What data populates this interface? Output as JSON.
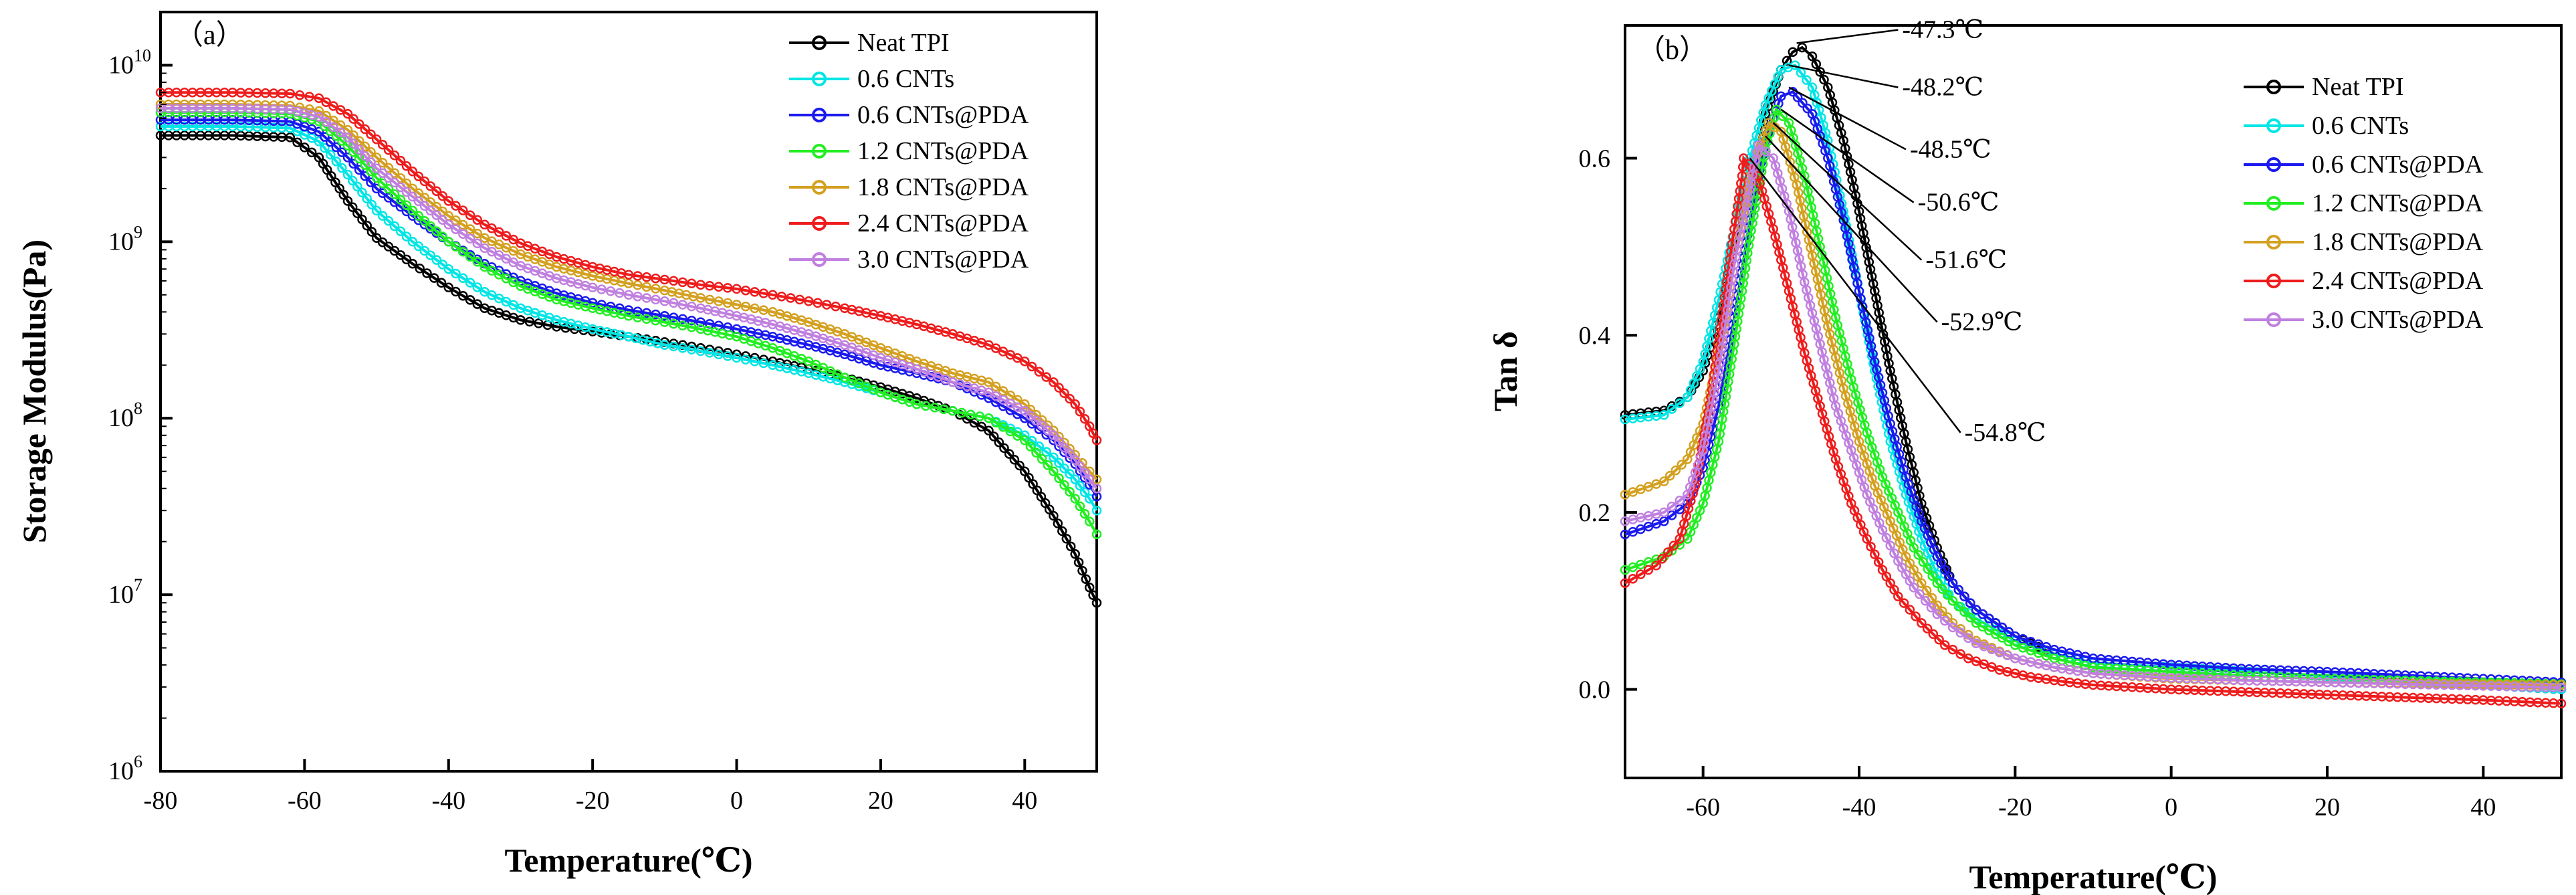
{
  "chart_data": [
    {
      "type": "line",
      "panel_label": "（a）",
      "xlabel": "Temperature(℃)",
      "ylabel": "Storage Modulus(Pa)",
      "xlim": [
        -80,
        50
      ],
      "ylim": [
        1000000,
        20000000000
      ],
      "yscale": "log",
      "x_ticks": [
        -80,
        -60,
        -40,
        -20,
        0,
        20,
        40
      ],
      "y_ticks": [
        {
          "exp": 6,
          "label_base": "10",
          "label_exp": "6"
        },
        {
          "exp": 7,
          "label_base": "10",
          "label_exp": "7"
        },
        {
          "exp": 8,
          "label_base": "10",
          "label_exp": "8"
        },
        {
          "exp": 9,
          "label_base": "10",
          "label_exp": "9"
        },
        {
          "exp": 10,
          "label_base": "10",
          "label_exp": "10"
        }
      ],
      "grid": false,
      "legend_position": "top-right",
      "series": [
        {
          "name": "Neat TPI",
          "color": "#000000",
          "x": [
            -80,
            -70,
            -62,
            -58,
            -54,
            -50,
            -45,
            -40,
            -35,
            -30,
            -25,
            -20,
            -15,
            -10,
            -5,
            0,
            5,
            10,
            15,
            20,
            25,
            30,
            35,
            40,
            44,
            47,
            49,
            50
          ],
          "y": [
            4000000000,
            4000000000,
            3900000000,
            3000000000,
            1700000000,
            1050000000,
            750000000,
            550000000,
            420000000,
            360000000,
            330000000,
            310000000,
            290000000,
            270000000,
            250000000,
            230000000,
            210000000,
            190000000,
            170000000,
            150000000,
            130000000,
            110000000,
            85000000,
            50000000,
            28000000,
            17000000,
            11000000,
            9000000
          ]
        },
        {
          "name": "0.6 CNTs",
          "color": "#00e5e5",
          "x": [
            -80,
            -70,
            -62,
            -58,
            -54,
            -50,
            -45,
            -40,
            -35,
            -30,
            -25,
            -20,
            -15,
            -10,
            -5,
            0,
            5,
            10,
            15,
            20,
            25,
            30,
            35,
            40,
            44,
            47,
            49,
            50
          ],
          "y": [
            4500000000,
            4500000000,
            4400000000,
            3700000000,
            2400000000,
            1500000000,
            1000000000,
            700000000,
            520000000,
            420000000,
            360000000,
            320000000,
            290000000,
            260000000,
            240000000,
            220000000,
            200000000,
            180000000,
            160000000,
            140000000,
            120000000,
            110000000,
            100000000,
            80000000,
            60000000,
            45000000,
            35000000,
            30000000
          ]
        },
        {
          "name": "0.6 CNTs@PDA",
          "color": "#1a1aee",
          "x": [
            -80,
            -70,
            -62,
            -58,
            -54,
            -50,
            -45,
            -40,
            -35,
            -30,
            -25,
            -20,
            -15,
            -10,
            -5,
            0,
            5,
            10,
            15,
            20,
            25,
            30,
            35,
            40,
            44,
            47,
            49,
            50
          ],
          "y": [
            4900000000,
            4900000000,
            4800000000,
            4200000000,
            3000000000,
            2000000000,
            1400000000,
            1000000000,
            750000000,
            600000000,
            510000000,
            450000000,
            410000000,
            380000000,
            350000000,
            320000000,
            290000000,
            260000000,
            230000000,
            200000000,
            180000000,
            160000000,
            130000000,
            100000000,
            75000000,
            55000000,
            42000000,
            36000000
          ]
        },
        {
          "name": "1.2 CNTs@PDA",
          "color": "#22ee22",
          "x": [
            -80,
            -70,
            -62,
            -58,
            -54,
            -50,
            -45,
            -40,
            -35,
            -30,
            -25,
            -20,
            -15,
            -10,
            -5,
            0,
            5,
            10,
            15,
            20,
            25,
            30,
            35,
            40,
            44,
            47,
            49,
            50
          ],
          "y": [
            5400000000,
            5400000000,
            5300000000,
            4800000000,
            3500000000,
            2300000000,
            1500000000,
            1000000000,
            720000000,
            560000000,
            470000000,
            420000000,
            380000000,
            350000000,
            320000000,
            290000000,
            250000000,
            210000000,
            170000000,
            140000000,
            120000000,
            110000000,
            100000000,
            75000000,
            50000000,
            35000000,
            26000000,
            22000000
          ]
        },
        {
          "name": "1.8 CNTs@PDA",
          "color": "#d4a020",
          "x": [
            -80,
            -70,
            -62,
            -58,
            -54,
            -50,
            -45,
            -40,
            -35,
            -30,
            -25,
            -20,
            -15,
            -10,
            -5,
            0,
            5,
            10,
            15,
            20,
            25,
            30,
            35,
            40,
            44,
            47,
            49,
            50
          ],
          "y": [
            6000000000,
            6000000000,
            5900000000,
            5500000000,
            4300000000,
            3000000000,
            2000000000,
            1400000000,
            1050000000,
            850000000,
            720000000,
            640000000,
            580000000,
            530000000,
            480000000,
            440000000,
            400000000,
            350000000,
            300000000,
            250000000,
            210000000,
            180000000,
            160000000,
            120000000,
            85000000,
            62000000,
            50000000,
            45000000
          ]
        },
        {
          "name": "2.4 CNTs@PDA",
          "color": "#ee1c1c",
          "x": [
            -80,
            -70,
            -62,
            -58,
            -54,
            -50,
            -45,
            -40,
            -35,
            -30,
            -25,
            -20,
            -15,
            -10,
            -5,
            0,
            5,
            10,
            15,
            20,
            25,
            30,
            35,
            40,
            44,
            47,
            49,
            50
          ],
          "y": [
            7000000000,
            7000000000,
            6900000000,
            6500000000,
            5300000000,
            3800000000,
            2500000000,
            1700000000,
            1250000000,
            980000000,
            820000000,
            720000000,
            650000000,
            610000000,
            570000000,
            540000000,
            500000000,
            460000000,
            420000000,
            380000000,
            340000000,
            300000000,
            260000000,
            210000000,
            160000000,
            120000000,
            90000000,
            75000000
          ]
        },
        {
          "name": "3.0 CNTs@PDA",
          "color": "#c080e0",
          "x": [
            -80,
            -70,
            -62,
            -58,
            -54,
            -50,
            -45,
            -40,
            -35,
            -30,
            -25,
            -20,
            -15,
            -10,
            -5,
            0,
            5,
            10,
            15,
            20,
            25,
            30,
            35,
            40,
            44,
            47,
            49,
            50
          ],
          "y": [
            5700000000,
            5700000000,
            5600000000,
            5100000000,
            3900000000,
            2600000000,
            1800000000,
            1250000000,
            920000000,
            730000000,
            620000000,
            550000000,
            500000000,
            460000000,
            420000000,
            380000000,
            340000000,
            300000000,
            260000000,
            220000000,
            190000000,
            160000000,
            140000000,
            110000000,
            80000000,
            58000000,
            45000000,
            40000000
          ]
        }
      ]
    },
    {
      "type": "line",
      "panel_label": "（b）",
      "xlabel": "Temperature(℃)",
      "ylabel": "Tan δ",
      "xlim": [
        -70,
        50
      ],
      "ylim": [
        -0.1,
        0.75
      ],
      "x_ticks": [
        -60,
        -40,
        -20,
        0,
        20,
        40
      ],
      "y_ticks": [
        0.0,
        0.2,
        0.4,
        0.6
      ],
      "y_tick_labels": [
        "0.0",
        "0.2",
        "0.4",
        "0.6"
      ],
      "grid": false,
      "legend_position": "top-right",
      "annotations": [
        {
          "text": "-47.3℃",
          "x": -48,
          "y": 0.73,
          "tx": -35,
          "ty": 0.745
        },
        {
          "text": "-48.2℃",
          "x": -49,
          "y": 0.705,
          "tx": -35,
          "ty": 0.68
        },
        {
          "text": "-48.5℃",
          "x": -49,
          "y": 0.68,
          "tx": -34,
          "ty": 0.61
        },
        {
          "text": "-50.6℃",
          "x": -50,
          "y": 0.655,
          "tx": -33,
          "ty": 0.55
        },
        {
          "text": "-51.6℃",
          "x": -51,
          "y": 0.64,
          "tx": -32,
          "ty": 0.485
        },
        {
          "text": "-52.9℃",
          "x": -52,
          "y": 0.625,
          "tx": -30,
          "ty": 0.415
        },
        {
          "text": "-54.8℃",
          "x": -54,
          "y": 0.6,
          "tx": -27,
          "ty": 0.29
        }
      ],
      "series": [
        {
          "name": "Neat TPI",
          "color": "#000000",
          "x": [
            -70,
            -65,
            -62,
            -60,
            -58,
            -56,
            -54,
            -52,
            -50,
            -48.5,
            -47.3,
            -46,
            -44,
            -42,
            -40,
            -38,
            -36,
            -34,
            -32,
            -30,
            -28,
            -25,
            -20,
            -15,
            -10,
            0,
            10,
            20,
            30,
            40,
            50
          ],
          "y": [
            0.31,
            0.315,
            0.33,
            0.36,
            0.42,
            0.5,
            0.58,
            0.65,
            0.7,
            0.72,
            0.725,
            0.715,
            0.68,
            0.62,
            0.54,
            0.45,
            0.36,
            0.28,
            0.21,
            0.16,
            0.12,
            0.09,
            0.06,
            0.04,
            0.03,
            0.025,
            0.02,
            0.015,
            0.01,
            0.005,
            0.0
          ]
        },
        {
          "name": "0.6 CNTs",
          "color": "#00e5e5",
          "x": [
            -70,
            -65,
            -62,
            -60,
            -58,
            -56,
            -54,
            -52,
            -50,
            -48.2,
            -46,
            -44,
            -42,
            -40,
            -38,
            -36,
            -34,
            -32,
            -30,
            -28,
            -25,
            -20,
            -15,
            -10,
            0,
            10,
            20,
            30,
            40,
            50
          ],
          "y": [
            0.305,
            0.31,
            0.33,
            0.37,
            0.44,
            0.52,
            0.6,
            0.66,
            0.7,
            0.705,
            0.68,
            0.62,
            0.54,
            0.45,
            0.36,
            0.28,
            0.22,
            0.17,
            0.13,
            0.1,
            0.08,
            0.055,
            0.04,
            0.03,
            0.025,
            0.02,
            0.015,
            0.01,
            0.005,
            0.0
          ]
        },
        {
          "name": "0.6 CNTs@PDA",
          "color": "#1a1aee",
          "x": [
            -70,
            -65,
            -62,
            -60,
            -58,
            -56,
            -54,
            -52,
            -50,
            -48.5,
            -46,
            -44,
            -42,
            -40,
            -38,
            -36,
            -34,
            -32,
            -30,
            -28,
            -25,
            -20,
            -15,
            -10,
            0,
            10,
            20,
            30,
            40,
            50
          ],
          "y": [
            0.175,
            0.19,
            0.21,
            0.25,
            0.32,
            0.42,
            0.53,
            0.62,
            0.67,
            0.675,
            0.65,
            0.6,
            0.53,
            0.45,
            0.37,
            0.3,
            0.24,
            0.19,
            0.15,
            0.12,
            0.09,
            0.06,
            0.045,
            0.035,
            0.028,
            0.023,
            0.02,
            0.016,
            0.012,
            0.008
          ]
        },
        {
          "name": "1.2 CNTs@PDA",
          "color": "#22ee22",
          "x": [
            -70,
            -65,
            -62,
            -60,
            -58,
            -56,
            -54,
            -52,
            -50.6,
            -49,
            -47,
            -45,
            -43,
            -41,
            -39,
            -37,
            -35,
            -33,
            -30,
            -28,
            -25,
            -20,
            -15,
            -10,
            0,
            10,
            20,
            30,
            40,
            50
          ],
          "y": [
            0.135,
            0.15,
            0.17,
            0.21,
            0.28,
            0.39,
            0.51,
            0.61,
            0.655,
            0.64,
            0.58,
            0.5,
            0.42,
            0.35,
            0.29,
            0.24,
            0.2,
            0.16,
            0.12,
            0.1,
            0.075,
            0.05,
            0.035,
            0.025,
            0.02,
            0.015,
            0.012,
            0.01,
            0.008,
            0.006
          ]
        },
        {
          "name": "1.8 CNTs@PDA",
          "color": "#d4a020",
          "x": [
            -70,
            -65,
            -62,
            -60,
            -58,
            -56,
            -54,
            -51.6,
            -50,
            -48,
            -46,
            -44,
            -42,
            -40,
            -38,
            -36,
            -34,
            -32,
            -30,
            -28,
            -25,
            -20,
            -15,
            -10,
            0,
            10,
            20,
            30,
            40,
            50
          ],
          "y": [
            0.22,
            0.235,
            0.26,
            0.3,
            0.38,
            0.48,
            0.58,
            0.64,
            0.63,
            0.57,
            0.49,
            0.41,
            0.34,
            0.28,
            0.23,
            0.19,
            0.15,
            0.12,
            0.095,
            0.075,
            0.055,
            0.035,
            0.025,
            0.018,
            0.012,
            0.01,
            0.008,
            0.007,
            0.006,
            0.005
          ]
        },
        {
          "name": "2.4 CNTs@PDA",
          "color": "#ee1c1c",
          "x": [
            -70,
            -66,
            -63,
            -61,
            -59,
            -57,
            -55,
            -54.8,
            -53,
            -51,
            -49,
            -47,
            -45,
            -43,
            -41,
            -39,
            -37,
            -35,
            -32,
            -29,
            -26,
            -22,
            -18,
            -14,
            -10,
            0,
            10,
            20,
            30,
            40,
            50
          ],
          "y": [
            0.12,
            0.14,
            0.17,
            0.23,
            0.33,
            0.46,
            0.58,
            0.6,
            0.58,
            0.52,
            0.45,
            0.38,
            0.32,
            0.26,
            0.21,
            0.17,
            0.135,
            0.105,
            0.075,
            0.05,
            0.035,
            0.022,
            0.014,
            0.009,
            0.005,
            0.0,
            -0.003,
            -0.006,
            -0.009,
            -0.012,
            -0.016
          ]
        },
        {
          "name": "3.0 CNTs@PDA",
          "color": "#c080e0",
          "x": [
            -70,
            -65,
            -62,
            -60,
            -58,
            -56,
            -52.9,
            -51,
            -49,
            -47,
            -45,
            -43,
            -41,
            -39,
            -37,
            -35,
            -33,
            -30,
            -28,
            -25,
            -20,
            -15,
            -10,
            0,
            10,
            20,
            30,
            40,
            50
          ],
          "y": [
            0.19,
            0.2,
            0.22,
            0.27,
            0.36,
            0.48,
            0.615,
            0.6,
            0.54,
            0.46,
            0.39,
            0.32,
            0.27,
            0.22,
            0.18,
            0.145,
            0.115,
            0.085,
            0.07,
            0.052,
            0.035,
            0.025,
            0.018,
            0.013,
            0.01,
            0.008,
            0.006,
            0.004,
            0.002
          ]
        }
      ]
    }
  ]
}
